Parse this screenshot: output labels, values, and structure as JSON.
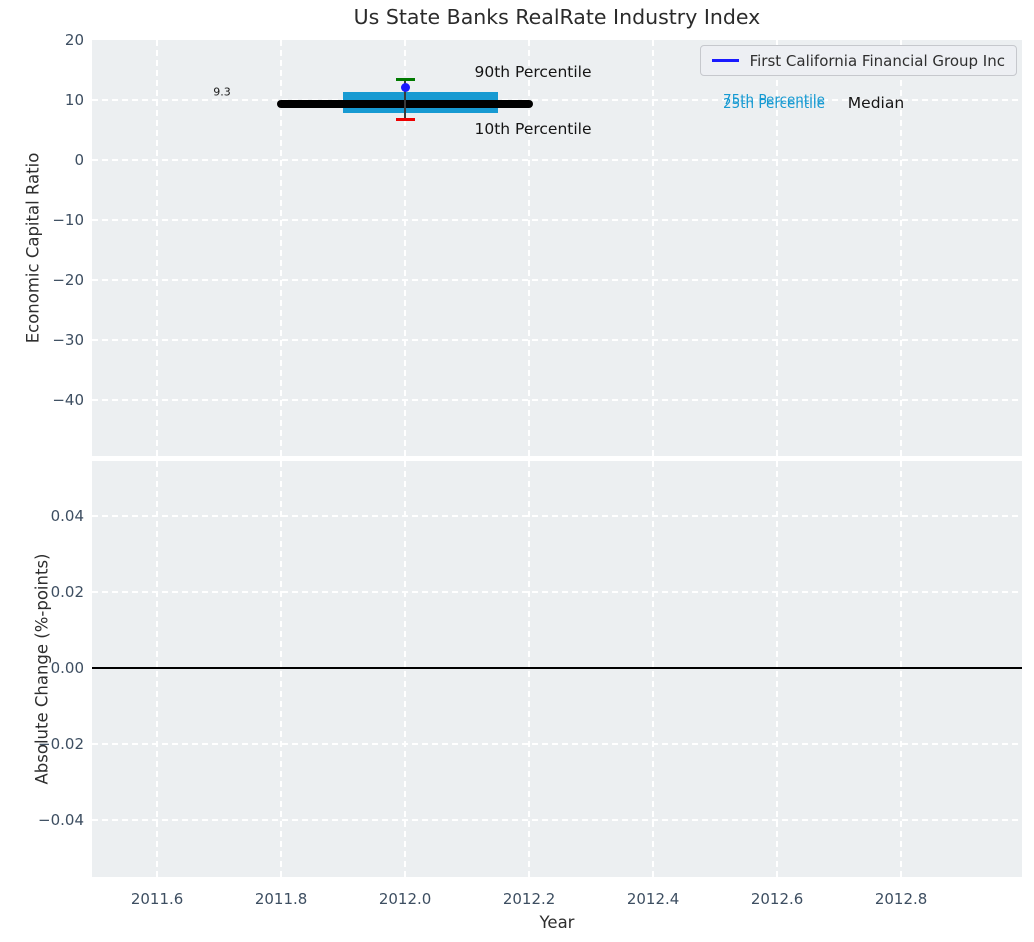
{
  "figure": {
    "title": "Us State Banks RealRate Industry Index"
  },
  "colors": {
    "plot_bg": "#eceff1",
    "grid": "#ffffff",
    "tick_label": "#3d4e61",
    "box_fill": "#179ad2",
    "percentile_text": "#179ad2",
    "median_line": "#000000",
    "company_blue": "#1a1aff",
    "p90_green": "#007a00",
    "p10_red": "#ee0000",
    "zero_line": "#000000"
  },
  "legend": {
    "series_label": "First California Financial Group Inc"
  },
  "annotations": {
    "p90_label": "90th Percentile",
    "p10_label": "10th Percentile",
    "p75_label": "75th Percentile",
    "p25_label": "25th Percentile",
    "median_label": "Median",
    "median_value_label": "9.3"
  },
  "chart_data": [
    {
      "type": "box",
      "title": "Us State Banks RealRate Industry Index",
      "xlabel": "Year",
      "ylabel": "Economic Capital Ratio",
      "grid": true,
      "legend_position": "upper right",
      "xlim": [
        2011.495,
        2012.995
      ],
      "ylim": [
        -49.3,
        20
      ],
      "x_ticks": [
        2011.6,
        2011.8,
        2012.0,
        2012.2,
        2012.4,
        2012.6,
        2012.8
      ],
      "x_tick_labels": [
        "2011.6",
        "2011.8",
        "2012.0",
        "2012.2",
        "2012.4",
        "2012.6",
        "2012.8"
      ],
      "y_ticks": [
        20,
        10,
        0,
        -10,
        -20,
        -30,
        -40
      ],
      "y_tick_labels": [
        "20",
        "10",
        "0",
        "−10",
        "−20",
        "−30",
        "−40"
      ],
      "series": [
        {
          "name": "First California Financial Group Inc",
          "x": [
            2012.0
          ],
          "values": [
            12.1
          ]
        }
      ],
      "box_stats": {
        "x": 2012.0,
        "median": 9.3,
        "p90": 13.4,
        "p75": 11.3,
        "p25": 7.8,
        "p10": 6.7,
        "median_x_span": [
          2011.8,
          2012.2
        ],
        "box_x_span": [
          2011.9,
          2012.15
        ]
      }
    },
    {
      "type": "line",
      "xlabel": "Year",
      "ylabel": "Absolute Change (%-points)",
      "grid": true,
      "xlim": [
        2011.495,
        2012.995
      ],
      "ylim": [
        -0.055,
        0.0545
      ],
      "x_ticks": [
        2011.6,
        2011.8,
        2012.0,
        2012.2,
        2012.4,
        2012.6,
        2012.8
      ],
      "x_tick_labels": [
        "2011.6",
        "2011.8",
        "2012.0",
        "2012.2",
        "2012.4",
        "2012.6",
        "2012.8"
      ],
      "y_ticks": [
        0.04,
        0.02,
        0.0,
        -0.02,
        -0.04
      ],
      "y_tick_labels": [
        "0.04",
        "0.02",
        "0.00",
        "−0.02",
        "−0.04"
      ],
      "zero_line": 0.0,
      "series": []
    }
  ]
}
